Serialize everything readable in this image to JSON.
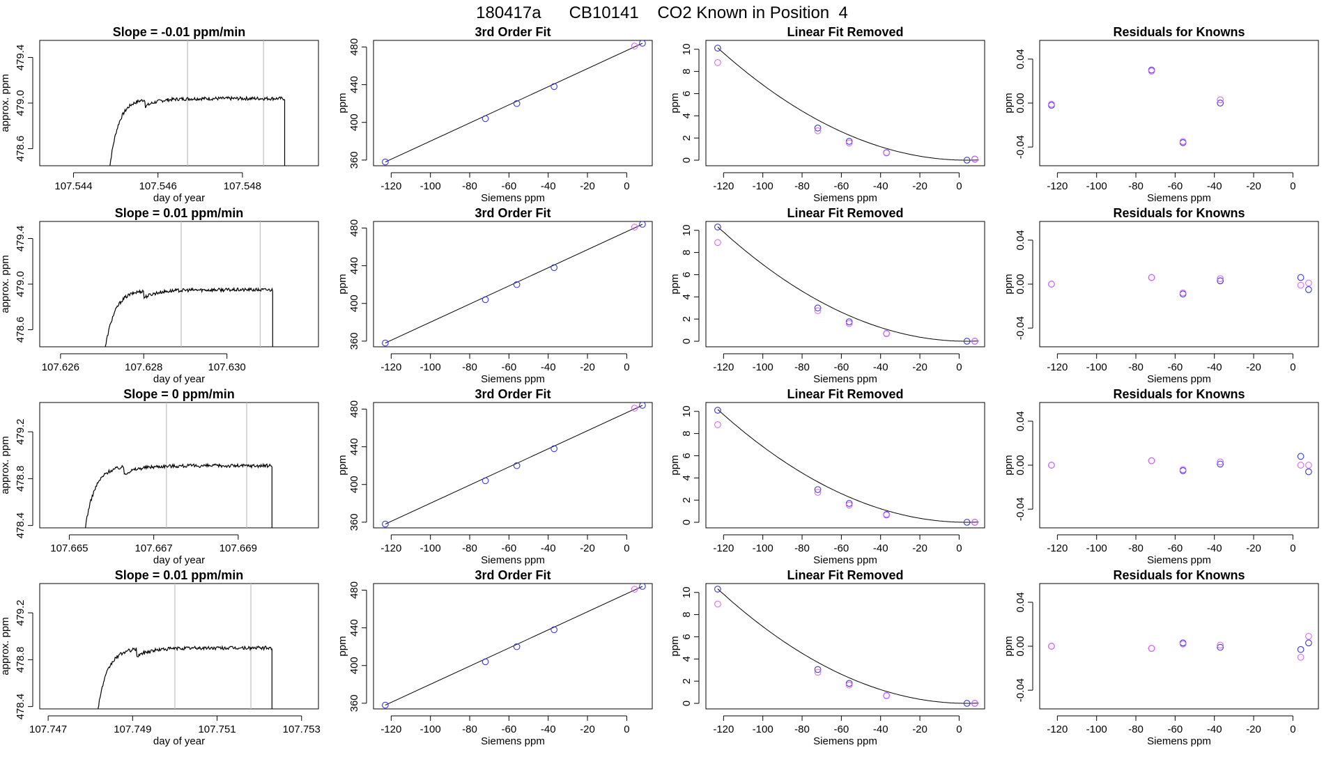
{
  "figure_title": "180417a      CB10141    CO2 Known in Position  4",
  "colors": {
    "trace": "#000000",
    "vline": "#bebebe",
    "blue": "#3333ee",
    "magenta": "#e066ff",
    "fit": "#000000"
  },
  "chart_data": [
    {
      "type": "line",
      "row": 0,
      "col": 0,
      "title": "Slope =  -0.01  ppm/min",
      "xlabel": "day of year",
      "ylabel": "approx. ppm",
      "xlim": [
        107.5432,
        107.5498
      ],
      "ylim": [
        478.45,
        479.55
      ],
      "xticks": [
        107.544,
        107.546,
        107.548
      ],
      "xtick_labels": [
        "107.544",
        "107.546",
        "107.548"
      ],
      "yticks": [
        478.6,
        479.0,
        479.4
      ],
      "ytick_labels": [
        "478.6",
        "479.0",
        "479.4"
      ],
      "vlines": [
        107.5467,
        107.5485
      ],
      "trace": {
        "t0": 107.5448,
        "rise_end": 107.5457,
        "plateau": 479.04,
        "t_end": 107.549
      }
    },
    {
      "type": "line",
      "row": 1,
      "col": 0,
      "title": "Slope =  0.01  ppm/min",
      "xlabel": "day of year",
      "ylabel": "approx. ppm",
      "xlim": [
        107.6255,
        107.6322
      ],
      "ylim": [
        478.45,
        479.55
      ],
      "xticks": [
        107.626,
        107.628,
        107.63
      ],
      "xtick_labels": [
        "107.626",
        "107.628",
        "107.630"
      ],
      "yticks": [
        478.6,
        479.0,
        479.4
      ],
      "ytick_labels": [
        "478.6",
        "479.0",
        "479.4"
      ],
      "vlines": [
        107.6289,
        107.6308
      ],
      "trace": {
        "t0": 107.627,
        "rise_end": 107.628,
        "plateau": 478.95,
        "t_end": 107.6311
      }
    },
    {
      "type": "line",
      "row": 2,
      "col": 0,
      "title": "Slope =  0  ppm/min",
      "xlabel": "day of year",
      "ylabel": "approx. ppm",
      "xlim": [
        107.6643,
        107.6709
      ],
      "ylim": [
        478.38,
        479.45
      ],
      "xticks": [
        107.665,
        107.667,
        107.669
      ],
      "xtick_labels": [
        "107.665",
        "107.667",
        "107.669"
      ],
      "yticks": [
        478.4,
        478.8,
        479.2
      ],
      "ytick_labels": [
        "478.4",
        "478.8",
        "479.2"
      ],
      "vlines": [
        107.6673,
        107.6692
      ],
      "trace": {
        "t0": 107.6653,
        "rise_end": 107.6663,
        "plateau": 478.91,
        "t_end": 107.6698
      }
    },
    {
      "type": "line",
      "row": 3,
      "col": 0,
      "title": "Slope =  0.01  ppm/min",
      "xlabel": "day of year",
      "ylabel": "approx. ppm",
      "xlim": [
        107.7468,
        107.7534
      ],
      "ylim": [
        478.38,
        479.45
      ],
      "xticks": [
        107.747,
        107.749,
        107.751,
        107.753
      ],
      "xtick_labels": [
        "107.747",
        "107.749",
        "107.751",
        "107.753"
      ],
      "yticks": [
        478.4,
        478.8,
        479.2
      ],
      "ytick_labels": [
        "478.4",
        "478.8",
        "479.2"
      ],
      "vlines": [
        107.75,
        107.7518
      ],
      "trace": {
        "t0": 107.7481,
        "rise_end": 107.7491,
        "plateau": 478.9,
        "t_end": 107.7523
      }
    },
    {
      "type": "scatter",
      "row": 0,
      "col": 1,
      "title": "3rd Order Fit",
      "xlabel": "Siemens ppm",
      "ylabel": "ppm",
      "xlim": [
        -129,
        13
      ],
      "ylim": [
        354,
        487
      ],
      "xticks": [
        -120,
        -100,
        -80,
        -60,
        -40,
        -20,
        0
      ],
      "xtick_labels": [
        "-120",
        "-100",
        "-80",
        "-60",
        "-40",
        "-20",
        "0"
      ],
      "yticks": [
        360,
        400,
        440,
        480
      ],
      "ytick_labels": [
        "360",
        "400",
        "440",
        "480"
      ],
      "fit_line": [
        [
          -123,
          358
        ],
        [
          8,
          484
        ]
      ],
      "series": [
        {
          "name": "blue",
          "x": [
            -123,
            -72,
            -56,
            -37,
            8
          ],
          "y": [
            358,
            404,
            420,
            438,
            484
          ]
        },
        {
          "name": "magenta",
          "x": [
            4
          ],
          "y": [
            481
          ]
        }
      ]
    },
    {
      "type": "scatter",
      "row": 1,
      "col": 1,
      "title": "3rd Order Fit",
      "xlabel": "Siemens ppm",
      "ylabel": "ppm",
      "xlim": [
        -129,
        13
      ],
      "ylim": [
        354,
        487
      ],
      "xticks": [
        -120,
        -100,
        -80,
        -60,
        -40,
        -20,
        0
      ],
      "xtick_labels": [
        "-120",
        "-100",
        "-80",
        "-60",
        "-40",
        "-20",
        "0"
      ],
      "yticks": [
        360,
        400,
        440,
        480
      ],
      "ytick_labels": [
        "360",
        "400",
        "440",
        "480"
      ],
      "fit_line": [
        [
          -123,
          358
        ],
        [
          8,
          484
        ]
      ],
      "series": [
        {
          "name": "blue",
          "x": [
            -123,
            -72,
            -56,
            -37,
            8
          ],
          "y": [
            358,
            404,
            420,
            438,
            484
          ]
        },
        {
          "name": "magenta",
          "x": [
            4
          ],
          "y": [
            481
          ]
        }
      ]
    },
    {
      "type": "scatter",
      "row": 2,
      "col": 1,
      "title": "3rd Order Fit",
      "xlabel": "Siemens ppm",
      "ylabel": "ppm",
      "xlim": [
        -129,
        13
      ],
      "ylim": [
        354,
        487
      ],
      "xticks": [
        -120,
        -100,
        -80,
        -60,
        -40,
        -20,
        0
      ],
      "xtick_labels": [
        "-120",
        "-100",
        "-80",
        "-60",
        "-40",
        "-20",
        "0"
      ],
      "yticks": [
        360,
        400,
        440,
        480
      ],
      "ytick_labels": [
        "360",
        "400",
        "440",
        "480"
      ],
      "fit_line": [
        [
          -123,
          358
        ],
        [
          8,
          484
        ]
      ],
      "series": [
        {
          "name": "blue",
          "x": [
            -123,
            -72,
            -56,
            -37,
            8
          ],
          "y": [
            358,
            404,
            420,
            438,
            484
          ]
        },
        {
          "name": "magenta",
          "x": [
            4
          ],
          "y": [
            481
          ]
        }
      ]
    },
    {
      "type": "scatter",
      "row": 3,
      "col": 1,
      "title": "3rd Order Fit",
      "xlabel": "Siemens ppm",
      "ylabel": "ppm",
      "xlim": [
        -129,
        13
      ],
      "ylim": [
        354,
        487
      ],
      "xticks": [
        -120,
        -100,
        -80,
        -60,
        -40,
        -20,
        0
      ],
      "xtick_labels": [
        "-120",
        "-100",
        "-80",
        "-60",
        "-40",
        "-20",
        "0"
      ],
      "yticks": [
        360,
        400,
        440,
        480
      ],
      "ytick_labels": [
        "360",
        "400",
        "440",
        "480"
      ],
      "fit_line": [
        [
          -123,
          358
        ],
        [
          8,
          484
        ]
      ],
      "series": [
        {
          "name": "blue",
          "x": [
            -123,
            -72,
            -56,
            -37,
            8
          ],
          "y": [
            358,
            404,
            420,
            438,
            484
          ]
        },
        {
          "name": "magenta",
          "x": [
            4
          ],
          "y": [
            481
          ]
        }
      ]
    },
    {
      "type": "scatter",
      "row": 0,
      "col": 2,
      "title": "Linear Fit Removed",
      "xlabel": "Siemens ppm",
      "ylabel": "ppm",
      "xlim": [
        -129,
        13
      ],
      "ylim": [
        -0.5,
        10.8
      ],
      "xticks": [
        -120,
        -100,
        -80,
        -60,
        -40,
        -20,
        0
      ],
      "xtick_labels": [
        "-120",
        "-100",
        "-80",
        "-60",
        "-40",
        "-20",
        "0"
      ],
      "yticks": [
        0,
        2,
        4,
        6,
        8,
        10
      ],
      "ytick_labels": [
        "0",
        "2",
        "4",
        "6",
        "8",
        "10"
      ],
      "fit_curve": {
        "vertex_x": 4,
        "a": 0.000628
      },
      "series": [
        {
          "name": "blue",
          "x": [
            -123,
            -72,
            -56,
            -37,
            4,
            8
          ],
          "y": [
            10.1,
            2.9,
            1.7,
            0.68,
            0.0,
            0.1
          ]
        },
        {
          "name": "magenta",
          "x": [
            -123,
            -72,
            -56,
            -37,
            8
          ],
          "y": [
            8.8,
            2.65,
            1.55,
            0.65,
            0.08
          ]
        }
      ]
    },
    {
      "type": "scatter",
      "row": 1,
      "col": 2,
      "title": "Linear Fit Removed",
      "xlabel": "Siemens ppm",
      "ylabel": "ppm",
      "xlim": [
        -129,
        13
      ],
      "ylim": [
        -0.5,
        10.8
      ],
      "xticks": [
        -120,
        -100,
        -80,
        -60,
        -40,
        -20,
        0
      ],
      "xtick_labels": [
        "-120",
        "-100",
        "-80",
        "-60",
        "-40",
        "-20",
        "0"
      ],
      "yticks": [
        0,
        2,
        4,
        6,
        8,
        10
      ],
      "ytick_labels": [
        "0",
        "2",
        "4",
        "6",
        "8",
        "10"
      ],
      "fit_curve": {
        "vertex_x": 4,
        "a": 0.00064
      },
      "series": [
        {
          "name": "blue",
          "x": [
            -123,
            -72,
            -56,
            -37,
            4,
            8
          ],
          "y": [
            10.3,
            3.0,
            1.75,
            0.7,
            0.0,
            0.0
          ]
        },
        {
          "name": "magenta",
          "x": [
            -123,
            -72,
            -56,
            -37,
            8
          ],
          "y": [
            8.9,
            2.75,
            1.6,
            0.68,
            0.0
          ]
        }
      ]
    },
    {
      "type": "scatter",
      "row": 2,
      "col": 2,
      "title": "Linear Fit Removed",
      "xlabel": "Siemens ppm",
      "ylabel": "ppm",
      "xlim": [
        -129,
        13
      ],
      "ylim": [
        -0.5,
        10.8
      ],
      "xticks": [
        -120,
        -100,
        -80,
        -60,
        -40,
        -20,
        0
      ],
      "xtick_labels": [
        "-120",
        "-100",
        "-80",
        "-60",
        "-40",
        "-20",
        "0"
      ],
      "yticks": [
        0,
        2,
        4,
        6,
        8,
        10
      ],
      "ytick_labels": [
        "0",
        "2",
        "4",
        "6",
        "8",
        "10"
      ],
      "fit_curve": {
        "vertex_x": 4,
        "a": 0.000631
      },
      "series": [
        {
          "name": "blue",
          "x": [
            -123,
            -72,
            -56,
            -37,
            4,
            8
          ],
          "y": [
            10.1,
            2.95,
            1.7,
            0.7,
            0.0,
            0.0
          ]
        },
        {
          "name": "magenta",
          "x": [
            -123,
            -72,
            -56,
            -37,
            8
          ],
          "y": [
            8.8,
            2.7,
            1.55,
            0.65,
            0.0
          ]
        }
      ]
    },
    {
      "type": "scatter",
      "row": 3,
      "col": 2,
      "title": "Linear Fit Removed",
      "xlabel": "Siemens ppm",
      "ylabel": "ppm",
      "xlim": [
        -129,
        13
      ],
      "ylim": [
        -0.5,
        10.8
      ],
      "xticks": [
        -120,
        -100,
        -80,
        -60,
        -40,
        -20,
        0
      ],
      "xtick_labels": [
        "-120",
        "-100",
        "-80",
        "-60",
        "-40",
        "-20",
        "0"
      ],
      "yticks": [
        0,
        2,
        4,
        6,
        8,
        10
      ],
      "ytick_labels": [
        "0",
        "2",
        "4",
        "6",
        "8",
        "10"
      ],
      "fit_curve": {
        "vertex_x": 4,
        "a": 0.00064
      },
      "series": [
        {
          "name": "blue",
          "x": [
            -123,
            -72,
            -56,
            -37,
            4,
            8
          ],
          "y": [
            10.3,
            3.05,
            1.8,
            0.7,
            0.0,
            0.0
          ]
        },
        {
          "name": "magenta",
          "x": [
            -123,
            -72,
            -56,
            -37,
            8
          ],
          "y": [
            8.95,
            2.8,
            1.65,
            0.68,
            0.0
          ]
        }
      ]
    },
    {
      "type": "scatter",
      "row": 0,
      "col": 3,
      "title": "Residuals for Knowns",
      "xlabel": "Siemens ppm",
      "ylabel": "ppm",
      "xlim": [
        -129,
        13
      ],
      "ylim": [
        -0.057,
        0.057
      ],
      "xticks": [
        -120,
        -100,
        -80,
        -60,
        -40,
        -20,
        0
      ],
      "xtick_labels": [
        "-120",
        "-100",
        "-80",
        "-60",
        "-40",
        "-20",
        "0"
      ],
      "yticks": [
        -0.04,
        0.0,
        0.04
      ],
      "ytick_labels": [
        "-0.04",
        "0.00",
        "0.04"
      ],
      "series": [
        {
          "name": "blue",
          "x": [
            -123,
            -72,
            -56,
            -37
          ],
          "y": [
            -0.002,
            0.03,
            -0.036,
            0.0
          ]
        },
        {
          "name": "magenta",
          "x": [
            -123,
            -72,
            -56,
            -37
          ],
          "y": [
            -0.001,
            0.029,
            -0.035,
            0.003
          ]
        }
      ]
    },
    {
      "type": "scatter",
      "row": 1,
      "col": 3,
      "title": "Residuals for Knowns",
      "xlabel": "Siemens ppm",
      "ylabel": "ppm",
      "xlim": [
        -129,
        13
      ],
      "ylim": [
        -0.057,
        0.057
      ],
      "xticks": [
        -120,
        -100,
        -80,
        -60,
        -40,
        -20,
        0
      ],
      "xtick_labels": [
        "-120",
        "-100",
        "-80",
        "-60",
        "-40",
        "-20",
        "0"
      ],
      "yticks": [
        -0.04,
        0.0,
        0.04
      ],
      "ytick_labels": [
        "-0.04",
        "0.00",
        "0.04"
      ],
      "series": [
        {
          "name": "blue",
          "x": [
            -123,
            -72,
            -56,
            -37,
            4,
            8
          ],
          "y": [
            0.0,
            0.006,
            -0.009,
            0.003,
            0.006,
            -0.005
          ]
        },
        {
          "name": "magenta",
          "x": [
            -123,
            -72,
            -56,
            -37,
            4,
            8
          ],
          "y": [
            0.0,
            0.006,
            -0.008,
            0.005,
            -0.001,
            0.001
          ]
        }
      ]
    },
    {
      "type": "scatter",
      "row": 2,
      "col": 3,
      "title": "Residuals for Knowns",
      "xlabel": "Siemens ppm",
      "ylabel": "ppm",
      "xlim": [
        -129,
        13
      ],
      "ylim": [
        -0.057,
        0.057
      ],
      "xticks": [
        -120,
        -100,
        -80,
        -60,
        -40,
        -20,
        0
      ],
      "xtick_labels": [
        "-120",
        "-100",
        "-80",
        "-60",
        "-40",
        "-20",
        "0"
      ],
      "yticks": [
        -0.04,
        0.0,
        0.04
      ],
      "ytick_labels": [
        "-0.04",
        "0.00",
        "0.04"
      ],
      "series": [
        {
          "name": "blue",
          "x": [
            -123,
            -72,
            -56,
            -37,
            4,
            8
          ],
          "y": [
            0.0,
            0.004,
            -0.005,
            0.001,
            0.008,
            -0.006
          ]
        },
        {
          "name": "magenta",
          "x": [
            -123,
            -72,
            -56,
            -37,
            4,
            8
          ],
          "y": [
            0.0,
            0.004,
            -0.004,
            0.003,
            0.0,
            0.0
          ]
        }
      ]
    },
    {
      "type": "scatter",
      "row": 3,
      "col": 3,
      "title": "Residuals for Knowns",
      "xlabel": "Siemens ppm",
      "ylabel": "ppm",
      "xlim": [
        -129,
        13
      ],
      "ylim": [
        -0.057,
        0.057
      ],
      "xticks": [
        -120,
        -100,
        -80,
        -60,
        -40,
        -20,
        0
      ],
      "xtick_labels": [
        "-120",
        "-100",
        "-80",
        "-60",
        "-40",
        "-20",
        "0"
      ],
      "yticks": [
        -0.04,
        0.0,
        0.04
      ],
      "ytick_labels": [
        "-0.04",
        "0.00",
        "0.04"
      ],
      "series": [
        {
          "name": "blue",
          "x": [
            -123,
            -72,
            -56,
            -37,
            4,
            8
          ],
          "y": [
            0.0,
            -0.002,
            0.003,
            -0.001,
            -0.003,
            0.003
          ]
        },
        {
          "name": "magenta",
          "x": [
            -123,
            -72,
            -56,
            -37,
            4,
            8
          ],
          "y": [
            0.0,
            -0.002,
            0.002,
            0.001,
            -0.01,
            0.009
          ]
        }
      ]
    }
  ]
}
